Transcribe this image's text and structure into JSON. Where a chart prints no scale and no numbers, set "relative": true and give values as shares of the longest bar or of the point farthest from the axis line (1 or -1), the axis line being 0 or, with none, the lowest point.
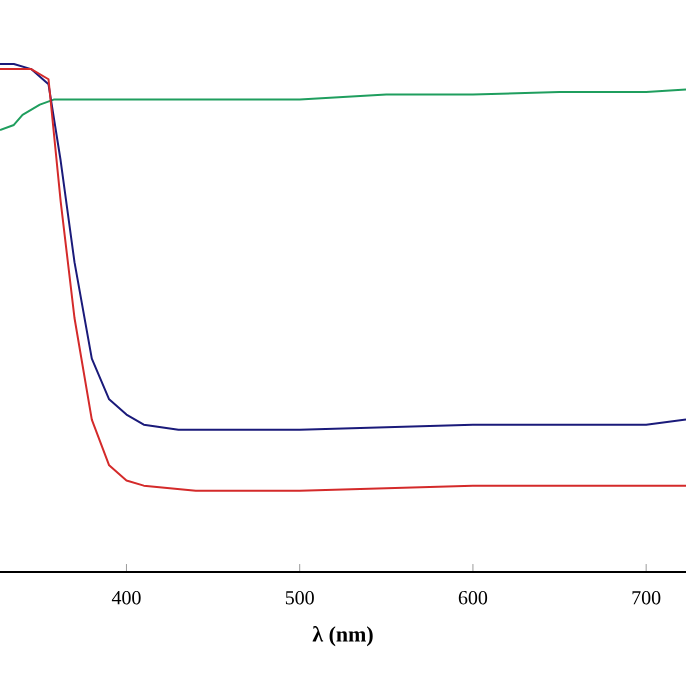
{
  "chart_data": {
    "type": "line",
    "xlabel": "λ (nm)",
    "relative": true,
    "xlim": [
      327,
      723
    ],
    "xticks": [
      400,
      500,
      600,
      700
    ],
    "series": [
      {
        "color": "#1f9e5e",
        "x": [
          327,
          335,
          340,
          350,
          358,
          370,
          400,
          450,
          500,
          550,
          600,
          650,
          700,
          723
        ],
        "values": [
          0.87,
          0.88,
          0.9,
          0.92,
          0.93,
          0.93,
          0.93,
          0.93,
          0.93,
          0.94,
          0.94,
          0.945,
          0.945,
          0.95
        ]
      },
      {
        "color": "#1a1a7a",
        "x": [
          327,
          335,
          345,
          355,
          362,
          370,
          380,
          390,
          400,
          410,
          430,
          500,
          600,
          700,
          723
        ],
        "values": [
          1.0,
          1.0,
          0.99,
          0.96,
          0.81,
          0.61,
          0.42,
          0.34,
          0.31,
          0.29,
          0.28,
          0.28,
          0.29,
          0.29,
          0.3
        ]
      },
      {
        "color": "#d42a2a",
        "x": [
          327,
          335,
          345,
          355,
          362,
          370,
          380,
          390,
          400,
          410,
          440,
          500,
          600,
          700,
          723
        ],
        "values": [
          0.99,
          0.99,
          0.99,
          0.97,
          0.73,
          0.5,
          0.3,
          0.21,
          0.18,
          0.17,
          0.16,
          0.16,
          0.17,
          0.17,
          0.17
        ]
      }
    ]
  }
}
